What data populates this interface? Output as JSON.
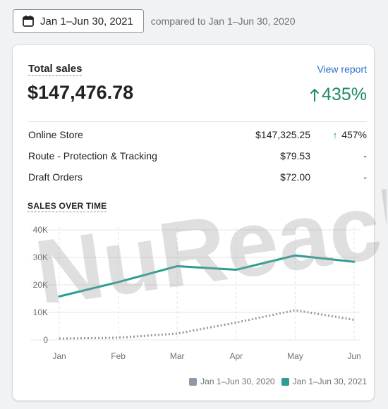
{
  "date_range": {
    "label": "Jan 1–Jun 30, 2021",
    "compared_text": "compared to Jan 1–Jun 30, 2020"
  },
  "card": {
    "title": "Total sales",
    "view_report": "View report",
    "total": "$147,476.78",
    "growth": "435%",
    "rows": [
      {
        "name": "Online Store",
        "amount": "$147,325.25",
        "pct": "457%"
      },
      {
        "name": "Route - Protection & Tracking",
        "amount": "$79.53",
        "pct": "-"
      },
      {
        "name": "Draft Orders",
        "amount": "$72.00",
        "pct": "-"
      }
    ],
    "sales_over_time": "SALES OVER TIME"
  },
  "watermark": "NuReach",
  "colors": {
    "current": "#2b9e94",
    "previous": "#8f99a5",
    "positive": "#1f8a66",
    "link": "#2c6ecb"
  },
  "chart_data": {
    "type": "line",
    "categories": [
      "Jan",
      "Feb",
      "Mar",
      "Apr",
      "May",
      "Jun"
    ],
    "y_ticks": [
      "0",
      "10K",
      "20K",
      "30K",
      "40K"
    ],
    "ylim": [
      0,
      40000
    ],
    "grid": true,
    "series": [
      {
        "name": "Jan 1–Jun 30, 2020",
        "style": "dotted",
        "values": [
          500,
          800,
          2300,
          6300,
          10800,
          7300
        ]
      },
      {
        "name": "Jan 1–Jun 30, 2021",
        "style": "solid",
        "values": [
          15800,
          21000,
          26800,
          25500,
          30700,
          28400
        ]
      }
    ]
  }
}
